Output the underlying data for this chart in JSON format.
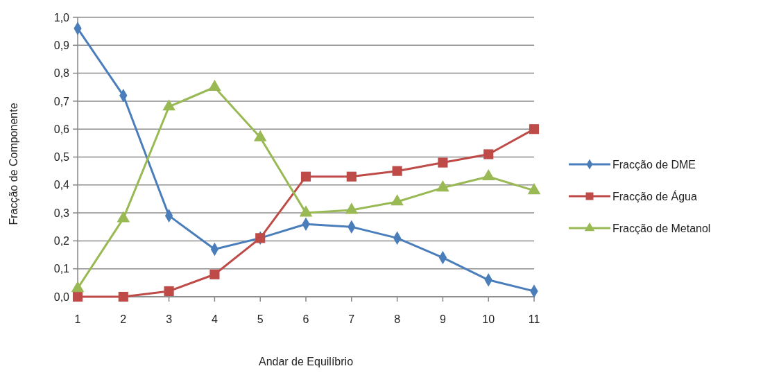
{
  "chart_data": {
    "type": "line",
    "xlabel": "Andar de Equilíbrio",
    "ylabel": "Fracção de Componente",
    "categories": [
      "1",
      "2",
      "3",
      "4",
      "5",
      "6",
      "7",
      "8",
      "9",
      "10",
      "11"
    ],
    "series": [
      {
        "name": "Fracção de DME",
        "color": "#4a7ebb",
        "marker": "diamond",
        "values": [
          0.96,
          0.72,
          0.29,
          0.17,
          0.21,
          0.26,
          0.25,
          0.21,
          0.14,
          0.06,
          0.02
        ]
      },
      {
        "name": "Fracção de Água",
        "color": "#be4b48",
        "marker": "square",
        "values": [
          0.0,
          0.0,
          0.02,
          0.08,
          0.21,
          0.43,
          0.43,
          0.45,
          0.48,
          0.51,
          0.6
        ]
      },
      {
        "name": "Fracção de Metanol",
        "color": "#98b954",
        "marker": "triangle",
        "values": [
          0.03,
          0.28,
          0.68,
          0.75,
          0.57,
          0.3,
          0.31,
          0.34,
          0.39,
          0.43,
          0.38
        ]
      }
    ],
    "ylim": [
      0,
      1
    ],
    "yticks": [
      {
        "value": 0,
        "label": "0,0"
      },
      {
        "value": 0.1,
        "label": "0,1"
      },
      {
        "value": 0.2,
        "label": "0,2"
      },
      {
        "value": 0.3,
        "label": "0,3"
      },
      {
        "value": 0.4,
        "label": "0,4"
      },
      {
        "value": 0.5,
        "label": "0,5"
      },
      {
        "value": 0.6,
        "label": "0,6"
      },
      {
        "value": 0.7,
        "label": "0,7"
      },
      {
        "value": 0.8,
        "label": "0,8"
      },
      {
        "value": 0.9,
        "label": "0,9"
      },
      {
        "value": 1,
        "label": "1,0"
      }
    ],
    "grid": "y",
    "legend": "right",
    "line_style": "solid"
  }
}
